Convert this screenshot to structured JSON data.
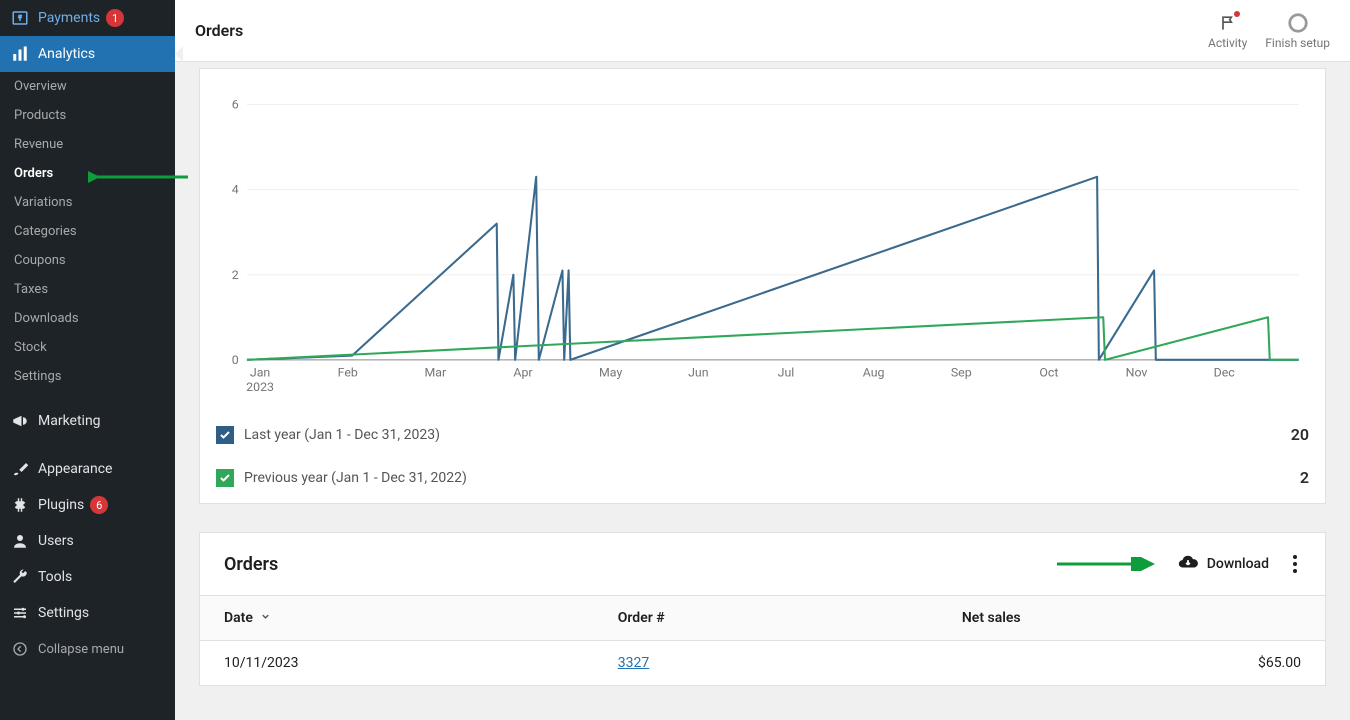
{
  "sidebar": {
    "payments": {
      "label": "Payments",
      "badge": "1"
    },
    "analytics": {
      "label": "Analytics"
    },
    "submenu": [
      {
        "label": "Overview"
      },
      {
        "label": "Products"
      },
      {
        "label": "Revenue"
      },
      {
        "label": "Orders",
        "current": true
      },
      {
        "label": "Variations"
      },
      {
        "label": "Categories"
      },
      {
        "label": "Coupons"
      },
      {
        "label": "Taxes"
      },
      {
        "label": "Downloads"
      },
      {
        "label": "Stock"
      },
      {
        "label": "Settings"
      }
    ],
    "marketing": {
      "label": "Marketing"
    },
    "appearance": {
      "label": "Appearance"
    },
    "plugins": {
      "label": "Plugins",
      "badge": "6"
    },
    "users": {
      "label": "Users"
    },
    "tools": {
      "label": "Tools"
    },
    "settings": {
      "label": "Settings"
    },
    "collapse": {
      "label": "Collapse menu"
    }
  },
  "header": {
    "title": "Orders",
    "activity": "Activity",
    "finish_setup": "Finish setup"
  },
  "chart": {
    "type": "line",
    "xlabels": [
      "Jan",
      "Feb",
      "Mar",
      "Apr",
      "May",
      "Jun",
      "Jul",
      "Aug",
      "Sep",
      "Oct",
      "Nov",
      "Dec"
    ],
    "xsublabel": "2023",
    "yticks": [
      0,
      2,
      4,
      6
    ],
    "ylim": [
      0,
      6.5
    ],
    "grid_color": "#d0d0d0",
    "axis_color": "#757575",
    "text_color": "#757575",
    "series": [
      {
        "name": "Last year (Jan 1 - Dec 31, 2023)",
        "color": "#3a6a8e",
        "checkbox_color": "#2f5e85",
        "total": "20",
        "points": [
          [
            1.2,
            0.1
          ],
          [
            2.85,
            3.2
          ],
          [
            2.87,
            0
          ],
          [
            3.04,
            2.0
          ],
          [
            3.06,
            0
          ],
          [
            3.3,
            4.3
          ],
          [
            3.33,
            0
          ],
          [
            3.6,
            2.1
          ],
          [
            3.62,
            0
          ],
          [
            3.67,
            2.1
          ],
          [
            3.69,
            0
          ],
          [
            9.7,
            4.3
          ],
          [
            9.72,
            0
          ],
          [
            10.35,
            2.1
          ],
          [
            10.37,
            0
          ]
        ]
      },
      {
        "name": "Previous year (Jan 1 - Dec 31, 2022)",
        "color": "#2fa859",
        "checkbox_color": "#2fa859",
        "total": "2",
        "points": [
          [
            9.77,
            1.0
          ],
          [
            9.79,
            0
          ],
          [
            11.65,
            1.0
          ],
          [
            11.67,
            0
          ]
        ]
      }
    ]
  },
  "orders_table": {
    "title": "Orders",
    "download": "Download",
    "columns": {
      "date": "Date",
      "order": "Order #",
      "net_sales": "Net sales"
    },
    "rows": [
      {
        "date": "10/11/2023",
        "order": "3327",
        "net_sales": "$65.00"
      }
    ]
  },
  "annotations": {
    "arrow_color": "#0f9d3b"
  }
}
